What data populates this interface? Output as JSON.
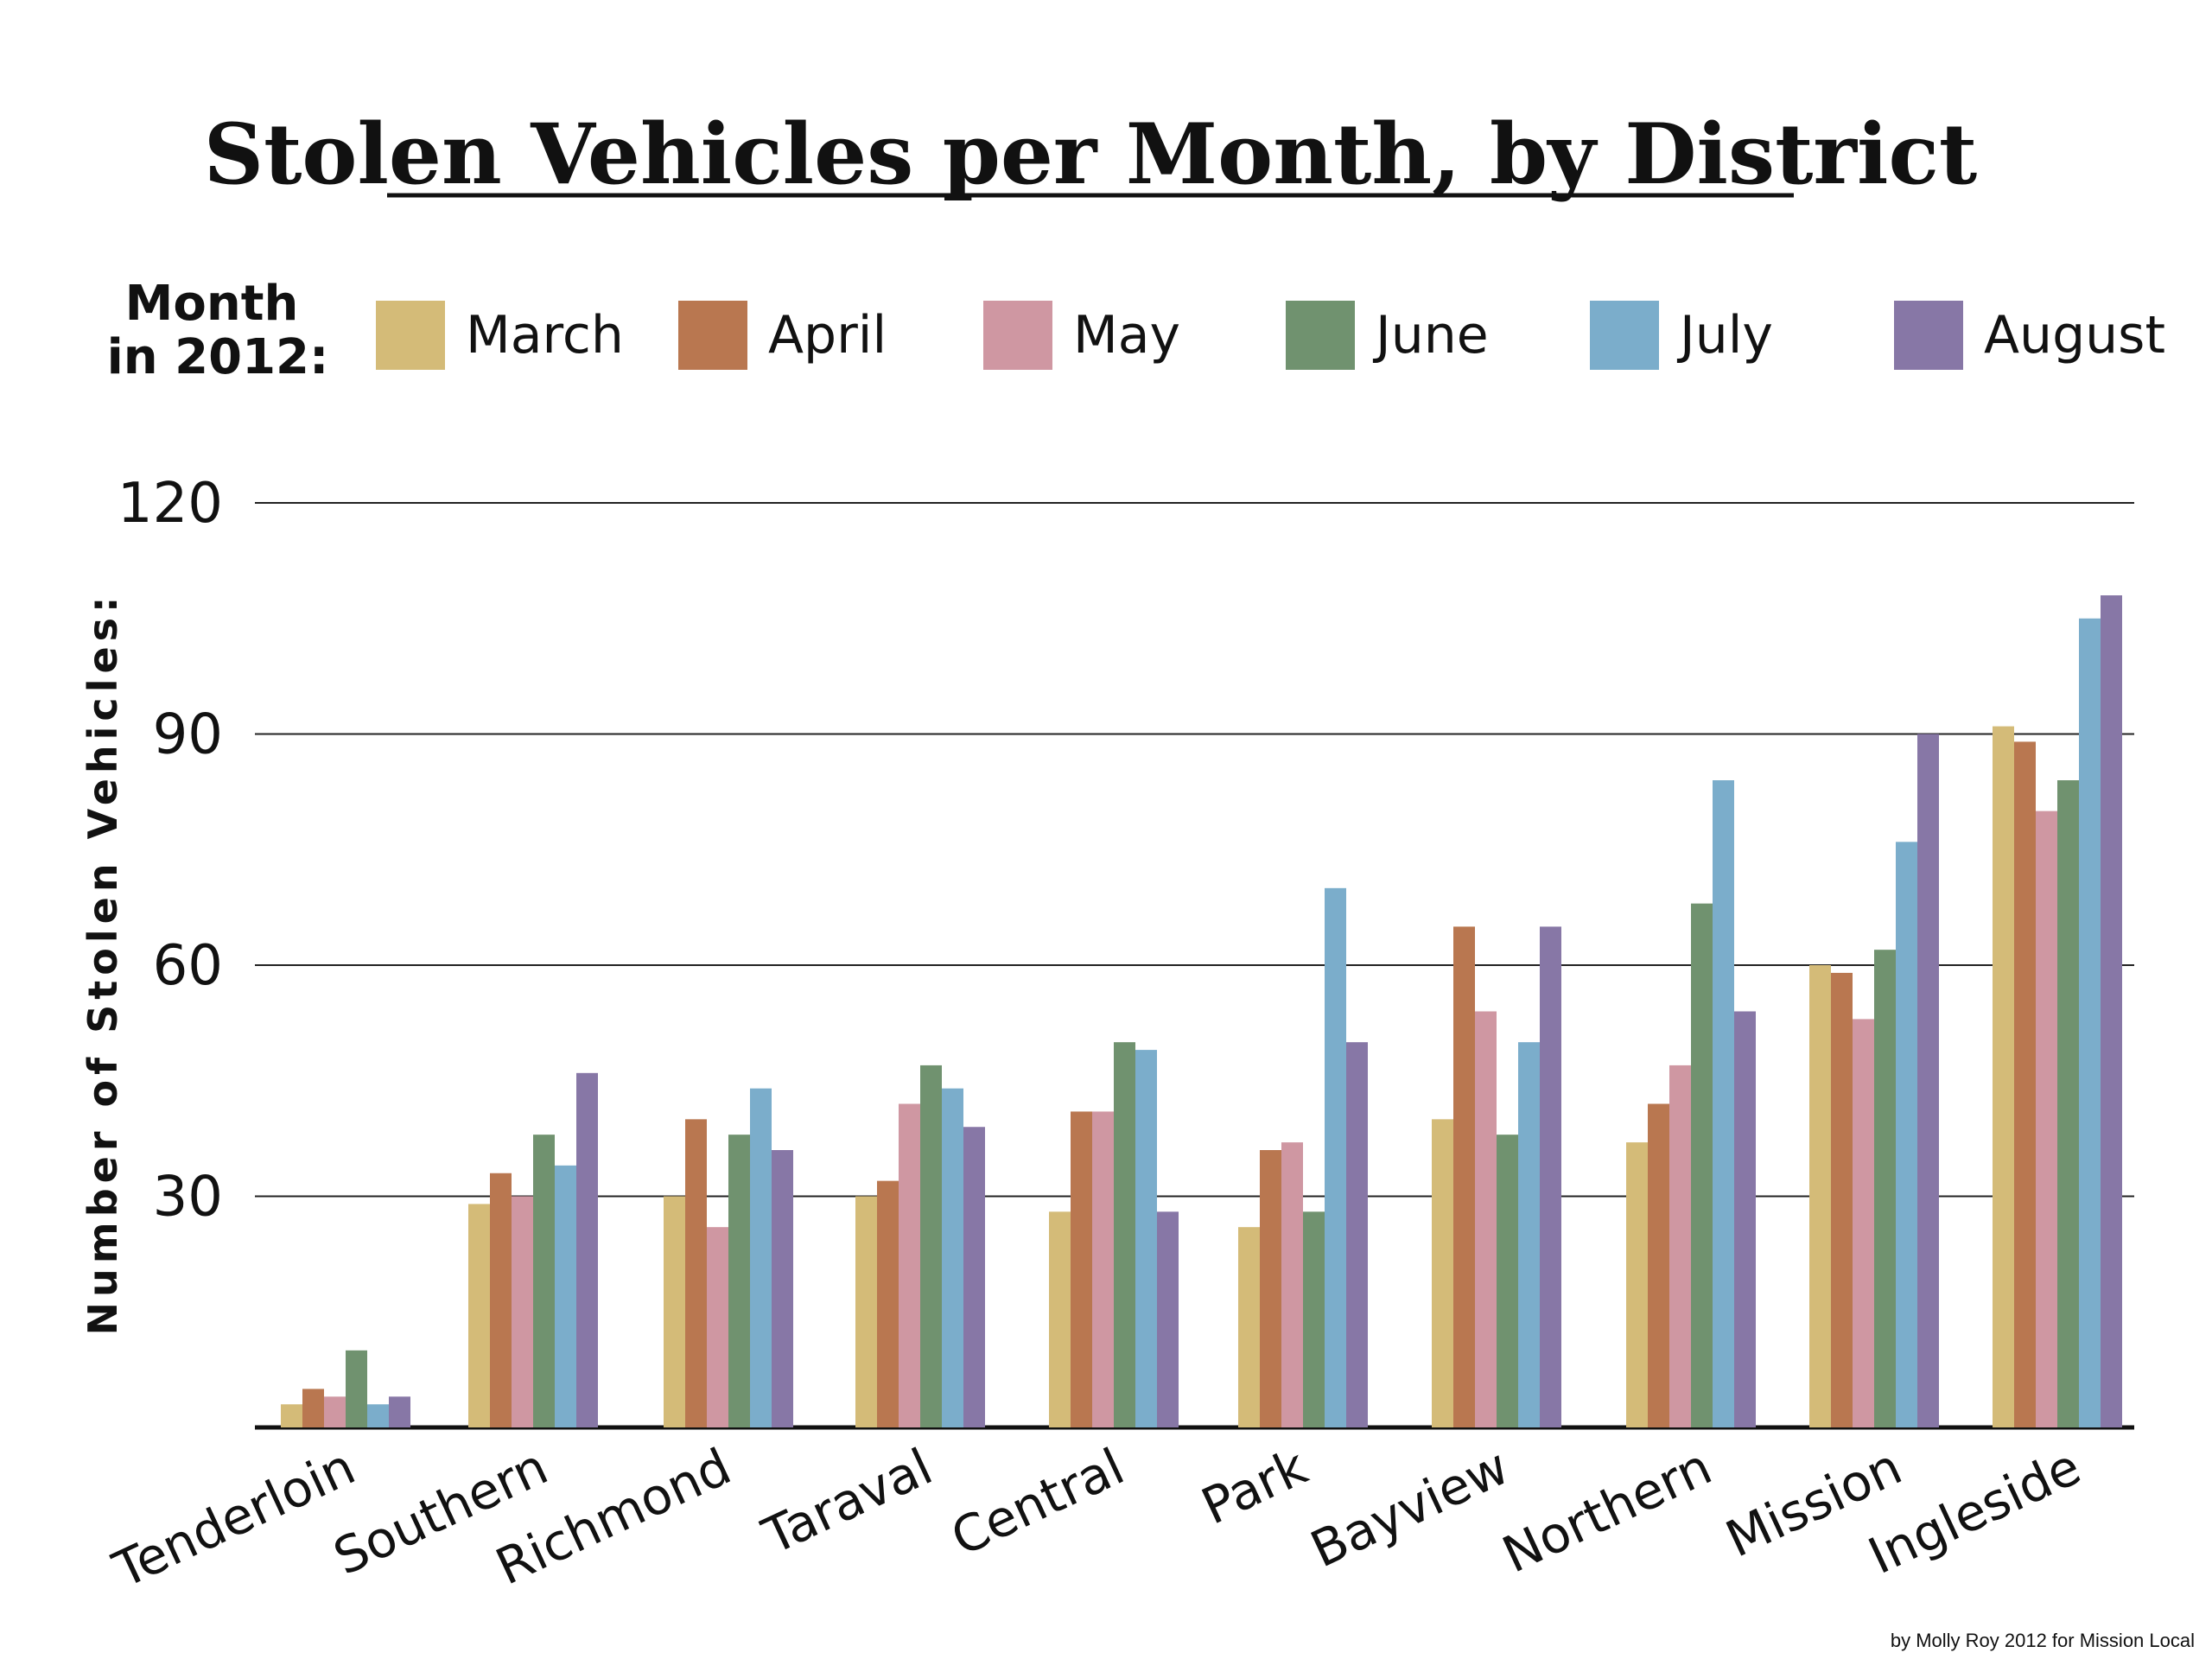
{
  "chart_data": {
    "type": "bar",
    "title": "Stolen Vehicles per Month, by District",
    "legend_title": [
      "Month",
      "in 2012:"
    ],
    "legend_position": "top",
    "ylabel": "Number of Stolen Vehicles:",
    "xlabel": "",
    "ylim": [
      0,
      120
    ],
    "yticks": [
      30,
      60,
      90,
      120
    ],
    "grid": true,
    "categories": [
      "Tenderloin",
      "Southern",
      "Richmond",
      "Taraval",
      "Central",
      "Park",
      "Bayview",
      "Northern",
      "Mission",
      "Ingleside"
    ],
    "series": [
      {
        "name": "March",
        "color": "#d4bb78",
        "values": [
          3,
          29,
          30,
          30,
          28,
          26,
          40,
          37,
          60,
          91
        ]
      },
      {
        "name": "April",
        "color": "#b97750",
        "values": [
          5,
          33,
          40,
          32,
          41,
          36,
          65,
          42,
          59,
          89
        ]
      },
      {
        "name": "May",
        "color": "#cf97a2",
        "values": [
          4,
          30,
          26,
          42,
          41,
          37,
          54,
          47,
          53,
          80
        ]
      },
      {
        "name": "June",
        "color": "#70926f",
        "values": [
          10,
          38,
          38,
          47,
          50,
          28,
          38,
          68,
          62,
          84
        ]
      },
      {
        "name": "July",
        "color": "#7badcb",
        "values": [
          3,
          34,
          44,
          44,
          49,
          70,
          50,
          84,
          76,
          105
        ]
      },
      {
        "name": "August",
        "color": "#8777a6",
        "values": [
          4,
          46,
          36,
          39,
          28,
          50,
          65,
          54,
          90,
          108
        ]
      }
    ],
    "credit": "by Molly Roy 2012 for Mission Local"
  }
}
